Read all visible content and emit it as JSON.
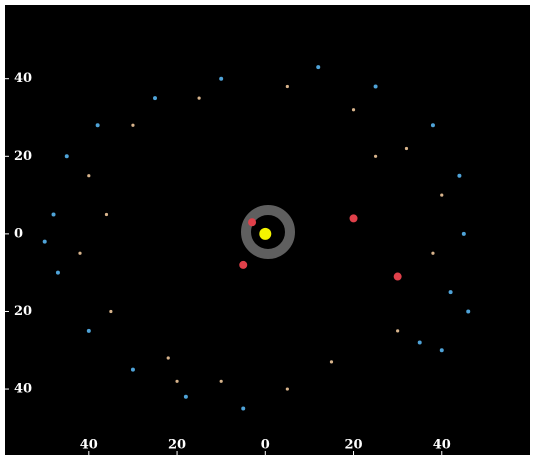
{
  "chart_data": {
    "type": "scatter",
    "xlim": [
      -59,
      60
    ],
    "ylim": [
      -57,
      59
    ],
    "xticks": [
      {
        "value": -40,
        "label": "40"
      },
      {
        "value": -20,
        "label": "20"
      },
      0,
      20,
      40
    ],
    "yticks": [
      {
        "value": 40,
        "label": "40"
      },
      {
        "value": 20,
        "label": "20"
      },
      0,
      {
        "value": -20,
        "label": "20"
      },
      {
        "value": -40,
        "label": "40"
      }
    ],
    "series": [
      {
        "color": "#4fa3d8",
        "size": 2,
        "x": [
          -45,
          -48,
          -47,
          -40,
          -30,
          -18,
          -5,
          35,
          42,
          45,
          44,
          38,
          25,
          12,
          -10,
          -25,
          -38,
          -50,
          46,
          40
        ],
        "y": [
          20,
          5,
          -10,
          -25,
          -35,
          -42,
          -45,
          -28,
          -15,
          0,
          15,
          28,
          38,
          43,
          40,
          35,
          28,
          -2,
          -20,
          -30
        ]
      },
      {
        "color": "#d8b48c",
        "size": 1.6,
        "x": [
          -40,
          -42,
          -35,
          -22,
          -10,
          5,
          30,
          38,
          40,
          32,
          20,
          5,
          -15,
          -30,
          -36,
          15,
          25,
          -20
        ],
        "y": [
          15,
          -5,
          -20,
          -32,
          -38,
          -40,
          -25,
          -5,
          10,
          22,
          32,
          38,
          35,
          28,
          5,
          -33,
          20,
          -38
        ]
      },
      {
        "color": "#e0404a",
        "size": 4,
        "x": [
          -3,
          20,
          -5,
          30
        ],
        "y": [
          3,
          4,
          -8,
          -11
        ]
      },
      {
        "color": "#f4f400",
        "size": 6,
        "x": [
          0
        ],
        "y": [
          0
        ]
      }
    ]
  }
}
